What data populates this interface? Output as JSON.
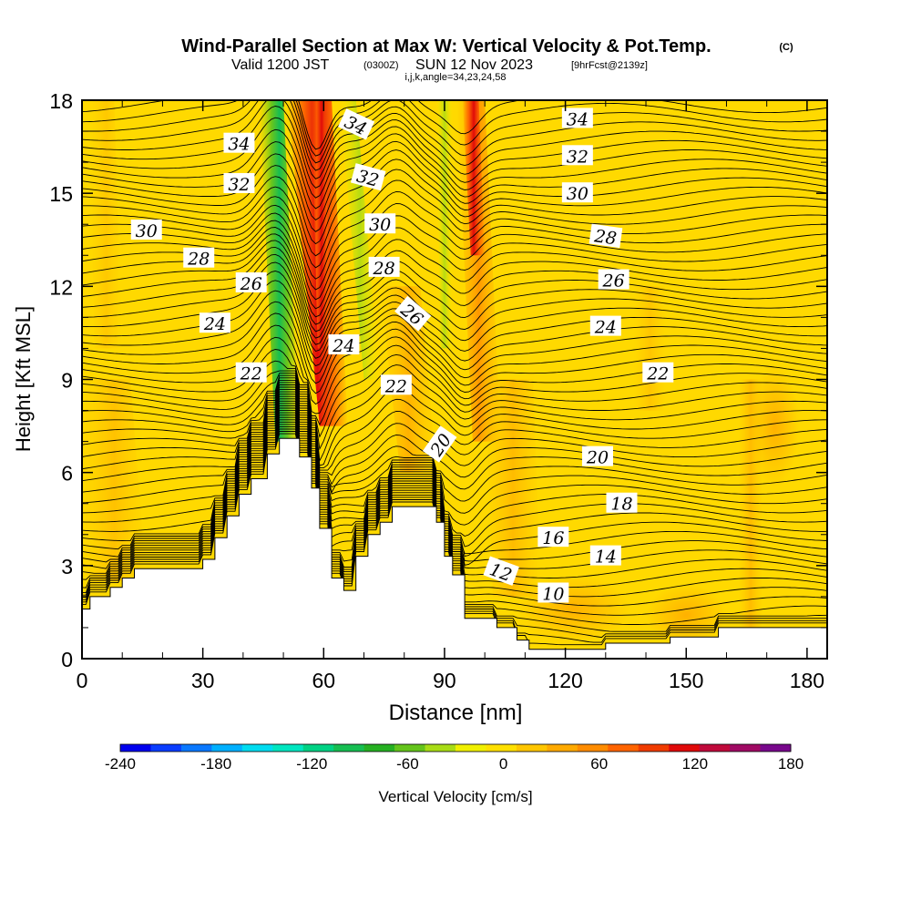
{
  "header": {
    "title": "Wind-Parallel Section at Max W: Vertical Velocity & Pot.Temp.",
    "copyright": "(C)",
    "valid_prefix": "Valid 1200 JST",
    "valid_utc": "(0300Z)",
    "valid_date": "SUN 12 Nov 2023",
    "forecast": "[9hrFcst@2139z]",
    "indices": "i,j,k,angle=34,23,24,58"
  },
  "chart_data": {
    "type": "contour_cross_section",
    "xlabel": "Distance [nm]",
    "ylabel": "Height [Kft MSL]",
    "xlim": [
      0,
      185
    ],
    "ylim": [
      0,
      18
    ],
    "xticks": [
      0,
      30,
      60,
      90,
      120,
      150,
      180
    ],
    "yticks": [
      0,
      3,
      6,
      9,
      12,
      15,
      18
    ],
    "colorbar": {
      "label": "Vertical Velocity [cm/s]",
      "ticks": [
        -240,
        -180,
        -120,
        -60,
        0,
        60,
        120,
        180
      ],
      "range": [
        -240,
        180
      ],
      "step": 20,
      "colors": [
        "#0000ee",
        "#0a3dff",
        "#0a78ff",
        "#00b0ff",
        "#00dcf0",
        "#00e6c0",
        "#00d284",
        "#16be52",
        "#26b022",
        "#64c41c",
        "#a8dc16",
        "#f0f000",
        "#ffe000",
        "#ffc600",
        "#ffaa00",
        "#ff8c00",
        "#ff6400",
        "#f03c00",
        "#e00a0a",
        "#c00a3c",
        "#a00a64",
        "#78088c"
      ]
    },
    "field": "vertical velocity (cm/s) shaded; potential temperature (C) contoured",
    "terrain": [
      [
        0,
        1.6
      ],
      [
        2,
        1.6
      ],
      [
        2,
        2
      ],
      [
        7,
        2
      ],
      [
        7,
        2.3
      ],
      [
        10,
        2.3
      ],
      [
        10,
        2.6
      ],
      [
        13,
        2.6
      ],
      [
        13,
        2.9
      ],
      [
        30,
        2.9
      ],
      [
        30,
        3.2
      ],
      [
        33,
        3.2
      ],
      [
        33,
        3.9
      ],
      [
        36,
        3.9
      ],
      [
        36,
        4.6
      ],
      [
        39,
        4.6
      ],
      [
        39,
        5.3
      ],
      [
        42,
        5.3
      ],
      [
        42,
        5.8
      ],
      [
        46,
        5.8
      ],
      [
        46,
        6.6
      ],
      [
        49,
        6.6
      ],
      [
        49,
        7.1
      ],
      [
        54,
        7.1
      ],
      [
        54,
        6.5
      ],
      [
        57,
        6.5
      ],
      [
        57,
        5.5
      ],
      [
        59,
        5.5
      ],
      [
        59,
        4.2
      ],
      [
        62,
        4.2
      ],
      [
        62,
        2.6
      ],
      [
        65,
        2.6
      ],
      [
        65,
        2.2
      ],
      [
        68,
        2.2
      ],
      [
        68,
        3.3
      ],
      [
        71,
        3.3
      ],
      [
        71,
        4.0
      ],
      [
        74,
        4.0
      ],
      [
        74,
        4.4
      ],
      [
        77,
        4.4
      ],
      [
        77,
        4.9
      ],
      [
        88,
        4.9
      ],
      [
        88,
        4.4
      ],
      [
        90,
        4.4
      ],
      [
        90,
        3.3
      ],
      [
        92,
        3.3
      ],
      [
        92,
        2.7
      ],
      [
        95,
        2.7
      ],
      [
        95,
        1.3
      ],
      [
        103,
        1.3
      ],
      [
        103,
        1.0
      ],
      [
        108,
        1.0
      ],
      [
        108,
        0.6
      ],
      [
        111,
        0.6
      ],
      [
        111,
        0.3
      ],
      [
        130,
        0.3
      ],
      [
        130,
        0.5
      ],
      [
        146,
        0.5
      ],
      [
        146,
        0.7
      ],
      [
        158,
        0.7
      ],
      [
        158,
        1.0
      ],
      [
        185,
        1.0
      ]
    ],
    "theta_labels": [
      {
        "text": "34",
        "x": 39,
        "y": 16.6,
        "angle": 0
      },
      {
        "text": "32",
        "x": 39,
        "y": 15.3,
        "angle": 0
      },
      {
        "text": "30",
        "x": 16,
        "y": 13.8,
        "angle": 0
      },
      {
        "text": "28",
        "x": 29,
        "y": 12.9,
        "angle": 0
      },
      {
        "text": "26",
        "x": 42,
        "y": 12.1,
        "angle": 0
      },
      {
        "text": "24",
        "x": 33,
        "y": 10.8,
        "angle": 0
      },
      {
        "text": "22",
        "x": 42,
        "y": 9.2,
        "angle": 0
      },
      {
        "text": "34",
        "x": 68,
        "y": 17.2,
        "angle": 25
      },
      {
        "text": "32",
        "x": 71,
        "y": 15.5,
        "angle": 15
      },
      {
        "text": "30",
        "x": 74,
        "y": 14.0,
        "angle": 0
      },
      {
        "text": "28",
        "x": 75,
        "y": 12.6,
        "angle": 0
      },
      {
        "text": "26",
        "x": 82,
        "y": 11.1,
        "angle": 40
      },
      {
        "text": "24",
        "x": 65,
        "y": 10.1,
        "angle": 0
      },
      {
        "text": "22",
        "x": 78,
        "y": 8.8,
        "angle": 0
      },
      {
        "text": "20",
        "x": 89,
        "y": 6.9,
        "angle": -55
      },
      {
        "text": "34",
        "x": 123,
        "y": 17.4,
        "angle": 0
      },
      {
        "text": "32",
        "x": 123,
        "y": 16.2,
        "angle": 0
      },
      {
        "text": "30",
        "x": 123,
        "y": 15.0,
        "angle": 0
      },
      {
        "text": "28",
        "x": 130,
        "y": 13.6,
        "angle": 8
      },
      {
        "text": "26",
        "x": 132,
        "y": 12.2,
        "angle": 0
      },
      {
        "text": "24",
        "x": 130,
        "y": 10.7,
        "angle": 0
      },
      {
        "text": "22",
        "x": 143,
        "y": 9.2,
        "angle": 0
      },
      {
        "text": "20",
        "x": 128,
        "y": 6.5,
        "angle": 0
      },
      {
        "text": "18",
        "x": 134,
        "y": 5.0,
        "angle": 0
      },
      {
        "text": "16",
        "x": 117,
        "y": 3.9,
        "angle": 0
      },
      {
        "text": "14",
        "x": 130,
        "y": 3.3,
        "angle": 0
      },
      {
        "text": "12",
        "x": 104,
        "y": 2.8,
        "angle": 20
      },
      {
        "text": "10",
        "x": 117,
        "y": 2.1,
        "angle": 0
      }
    ]
  }
}
